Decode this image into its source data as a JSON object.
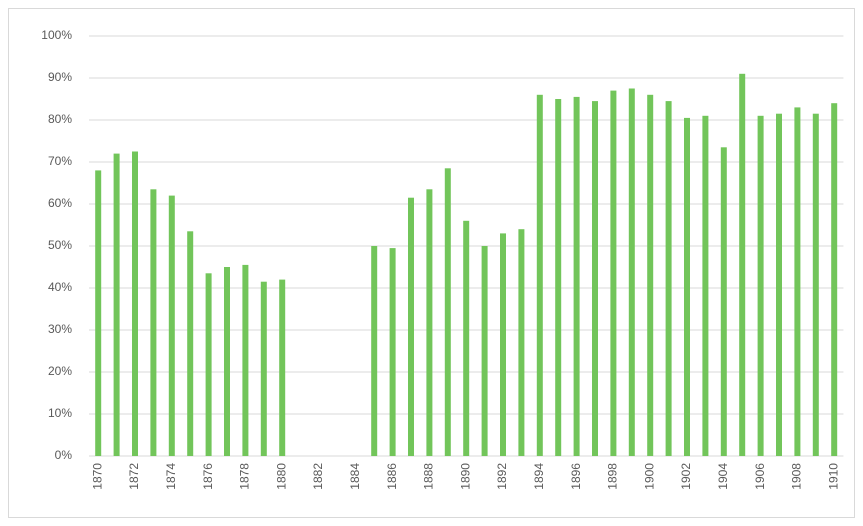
{
  "chart_data": {
    "type": "bar",
    "categories": [
      "1870",
      null,
      "1872",
      null,
      "1874",
      null,
      "1876",
      null,
      "1878",
      null,
      "1880",
      null,
      "1882",
      null,
      "1884",
      null,
      "1886",
      null,
      "1888",
      null,
      "1890",
      null,
      "1892",
      null,
      "1894",
      null,
      "1896",
      null,
      "1898",
      null,
      "1900",
      null,
      "1902",
      null,
      "1904",
      null,
      "1906",
      null,
      "1908",
      null,
      "1910"
    ],
    "values": [
      68,
      72,
      72.5,
      63.5,
      62,
      53.5,
      43.5,
      45,
      45.5,
      41.5,
      42,
      null,
      null,
      null,
      null,
      50,
      49.5,
      61.5,
      63.5,
      68.5,
      56,
      50,
      53,
      54,
      86,
      85,
      85.5,
      84.5,
      87,
      87.5,
      86,
      84.5,
      80.5,
      81,
      73.5,
      91,
      81,
      81.5,
      83,
      81.5,
      84
    ],
    "color": "#72c55a",
    "ylim": [
      0,
      100
    ],
    "yticks": [
      {
        "value": 0,
        "label": "0%"
      },
      {
        "value": 10,
        "label": "10%"
      },
      {
        "value": 20,
        "label": "20%"
      },
      {
        "value": 30,
        "label": "30%"
      },
      {
        "value": 40,
        "label": "40%"
      },
      {
        "value": 50,
        "label": "50%"
      },
      {
        "value": 60,
        "label": "60%"
      },
      {
        "value": 70,
        "label": "70%"
      },
      {
        "value": 80,
        "label": "80%"
      },
      {
        "value": 90,
        "label": "90%"
      },
      {
        "value": 100,
        "label": "100%"
      }
    ],
    "grid": true
  }
}
